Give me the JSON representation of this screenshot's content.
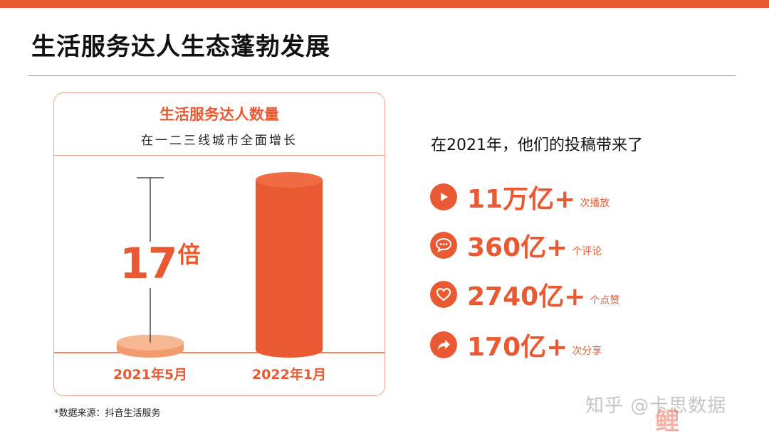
{
  "page": {
    "title": "生活服务达人生态蓬勃发展",
    "accent_color": "#EA5A32"
  },
  "chart_card": {
    "title": "生活服务达人数量",
    "subtitle": "在一二三线城市全面增长",
    "multiplier_value": "17",
    "multiplier_unit": "倍",
    "source": "*数据来源：抖音生活服务"
  },
  "chart_data": {
    "type": "bar",
    "categories": [
      "2021年5月",
      "2022年1月"
    ],
    "values": [
      1,
      17
    ],
    "title": "生活服务达人数量",
    "subtitle": "在一二三线城市全面增长",
    "annotation": "17倍",
    "xlabel": "",
    "ylabel": "",
    "grid": false
  },
  "stats": {
    "intro": "在2021年，他们的投稿带来了",
    "items": [
      {
        "icon": "play-icon",
        "value": "11万亿+",
        "unit": "次播放"
      },
      {
        "icon": "comment-icon",
        "value": "360亿+",
        "unit": "个评论"
      },
      {
        "icon": "heart-icon",
        "value": "2740亿+",
        "unit": "个点赞"
      },
      {
        "icon": "share-icon",
        "value": "170亿+",
        "unit": "次分享"
      }
    ]
  },
  "watermark": {
    "text": "知乎 @卡思数据",
    "logo": "鲤"
  }
}
